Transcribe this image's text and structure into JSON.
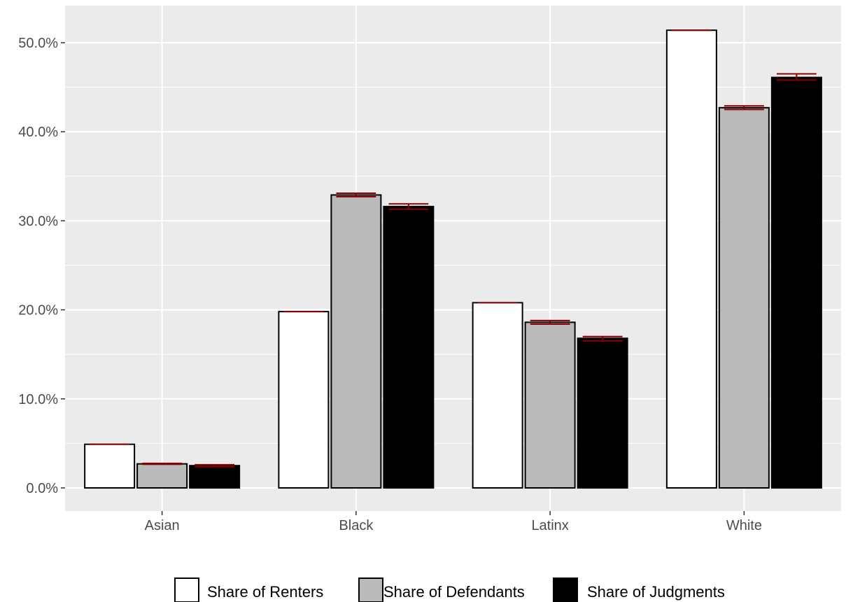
{
  "chart_data": {
    "type": "bar",
    "title": "",
    "xlabel": "",
    "ylabel": "",
    "categories": [
      "Asian",
      "Black",
      "Latinx",
      "White"
    ],
    "ylim": [
      -0.02,
      0.54
    ],
    "y_ticks": [
      0,
      0.1,
      0.2,
      0.3,
      0.4,
      0.5
    ],
    "y_tick_labels": [
      "0.0%",
      "10.0%",
      "20.0%",
      "30.0%",
      "40.0%",
      "50.0%"
    ],
    "grid": true,
    "legend_position": "bottom",
    "error_bar_color": "#8b0000",
    "panel_background": "#ebebeb",
    "series": [
      {
        "name": "Share of Renters",
        "color": "#ffffff",
        "values": [
          0.049,
          0.198,
          0.208,
          0.514
        ],
        "error": [
          [
            0.049,
            0.049
          ],
          [
            0.198,
            0.198
          ],
          [
            0.208,
            0.208
          ],
          [
            0.514,
            0.514
          ]
        ]
      },
      {
        "name": "Share of Defendants",
        "color": "#bababa",
        "values": [
          0.027,
          0.329,
          0.186,
          0.427
        ],
        "error": [
          [
            0.0265,
            0.0275
          ],
          [
            0.327,
            0.331
          ],
          [
            0.184,
            0.188
          ],
          [
            0.425,
            0.429
          ]
        ]
      },
      {
        "name": "Share of Judgments",
        "color": "#000000",
        "values": [
          0.025,
          0.316,
          0.168,
          0.461
        ],
        "error": [
          [
            0.024,
            0.026
          ],
          [
            0.313,
            0.319
          ],
          [
            0.165,
            0.17
          ],
          [
            0.458,
            0.465
          ]
        ]
      }
    ]
  }
}
